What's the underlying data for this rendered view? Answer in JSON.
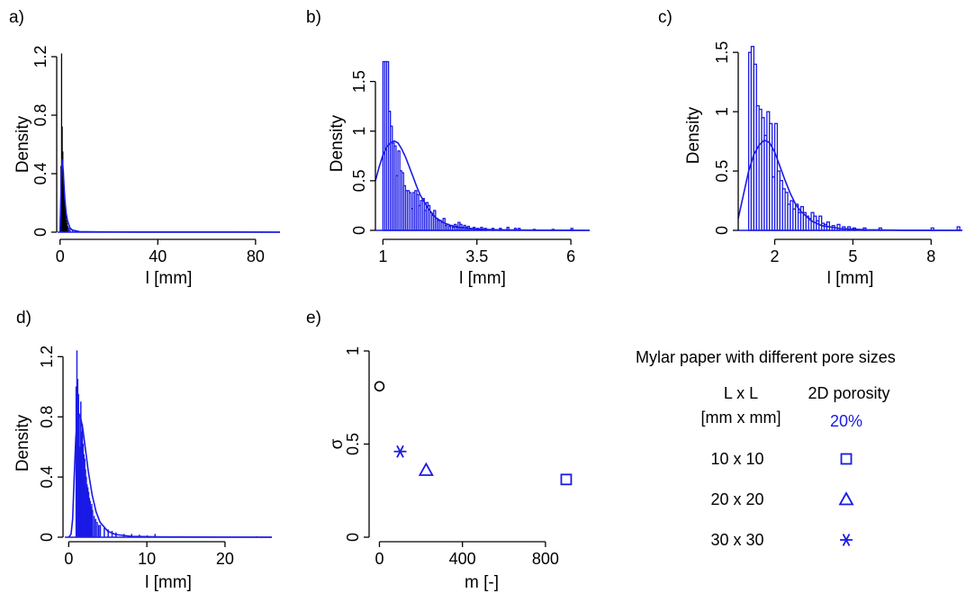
{
  "colors": {
    "series": "#1a1ae6",
    "reference": "#000000",
    "axis": "#000000"
  },
  "chart_data": [
    {
      "id": "a",
      "panel_label": "a)",
      "type": "histogram",
      "xlabel": "l [mm]",
      "ylabel": "Density",
      "xlim": [
        -1,
        90
      ],
      "ylim": [
        0,
        1.2
      ],
      "xticks": [
        {
          "v": 0,
          "label": "0"
        },
        {
          "v": 40,
          "label": "40"
        },
        {
          "v": 80,
          "label": "80"
        }
      ],
      "yticks": [
        {
          "v": 0,
          "label": "0"
        },
        {
          "v": 0.4,
          "label": "0.4"
        },
        {
          "v": 0.8,
          "label": "0.8"
        },
        {
          "v": 1.2,
          "label": "1.2"
        }
      ],
      "bin_width": 0.25,
      "bars": [
        {
          "x": 0.0,
          "h": 0.1,
          "color": "black"
        },
        {
          "x": 0.25,
          "h": 0.45,
          "color": "black"
        },
        {
          "x": 0.5,
          "h": 1.22,
          "color": "black"
        },
        {
          "x": 0.75,
          "h": 0.72,
          "color": "black"
        },
        {
          "x": 1.0,
          "h": 0.55,
          "color": "black"
        },
        {
          "x": 1.25,
          "h": 0.42,
          "color": "black"
        },
        {
          "x": 1.5,
          "h": 0.3,
          "color": "black"
        },
        {
          "x": 1.75,
          "h": 0.22,
          "color": "black"
        },
        {
          "x": 2.0,
          "h": 0.16,
          "color": "black"
        },
        {
          "x": 2.25,
          "h": 0.11,
          "color": "black"
        },
        {
          "x": 2.5,
          "h": 0.08,
          "color": "black"
        },
        {
          "x": 2.75,
          "h": 0.06,
          "color": "black"
        },
        {
          "x": 3.0,
          "h": 0.04,
          "color": "black"
        },
        {
          "x": 3.5,
          "h": 0.03,
          "color": "blue"
        },
        {
          "x": 4.0,
          "h": 0.02,
          "color": "blue"
        },
        {
          "x": 5.0,
          "h": 0.015,
          "color": "blue"
        },
        {
          "x": 6.0,
          "h": 0.01,
          "color": "blue"
        }
      ],
      "curve": [
        [
          0,
          0
        ],
        [
          0.3,
          0.2
        ],
        [
          0.6,
          0.42
        ],
        [
          0.9,
          0.5
        ],
        [
          1.2,
          0.44
        ],
        [
          1.6,
          0.32
        ],
        [
          2.0,
          0.22
        ],
        [
          2.5,
          0.13
        ],
        [
          3.0,
          0.08
        ],
        [
          4.0,
          0.03
        ],
        [
          5.0,
          0.015
        ],
        [
          8,
          0.004
        ],
        [
          15,
          0.002
        ],
        [
          30,
          0.001
        ],
        [
          60,
          0.001
        ],
        [
          90,
          0.0
        ]
      ]
    },
    {
      "id": "b",
      "panel_label": "b)",
      "type": "histogram",
      "xlabel": "l [mm]",
      "ylabel": "Density",
      "xlim": [
        0.8,
        6.5
      ],
      "ylim": [
        0,
        1.75
      ],
      "xticks": [
        {
          "v": 1,
          "label": "1"
        },
        {
          "v": 3.5,
          "label": "3.5"
        },
        {
          "v": 6,
          "label": "6"
        }
      ],
      "yticks": [
        {
          "v": 0,
          "label": "0"
        },
        {
          "v": 0.5,
          "label": "0.5"
        },
        {
          "v": 1,
          "label": "1"
        },
        {
          "v": 1.5,
          "label": "1.5"
        }
      ],
      "bin_width": 0.05,
      "bars": [
        {
          "x": 1.0,
          "h": 1.7
        },
        {
          "x": 1.05,
          "h": 1.7
        },
        {
          "x": 1.1,
          "h": 1.7
        },
        {
          "x": 1.15,
          "h": 1.2
        },
        {
          "x": 1.2,
          "h": 1.05
        },
        {
          "x": 1.25,
          "h": 0.88
        },
        {
          "x": 1.3,
          "h": 0.85
        },
        {
          "x": 1.35,
          "h": 0.55
        },
        {
          "x": 1.4,
          "h": 0.8
        },
        {
          "x": 1.45,
          "h": 0.6
        },
        {
          "x": 1.5,
          "h": 0.58
        },
        {
          "x": 1.55,
          "h": 0.45
        },
        {
          "x": 1.6,
          "h": 0.4
        },
        {
          "x": 1.65,
          "h": 0.4
        },
        {
          "x": 1.7,
          "h": 0.38
        },
        {
          "x": 1.75,
          "h": 0.22
        },
        {
          "x": 1.8,
          "h": 0.38
        },
        {
          "x": 1.85,
          "h": 0.4
        },
        {
          "x": 1.9,
          "h": 0.36
        },
        {
          "x": 1.95,
          "h": 0.25
        },
        {
          "x": 2.0,
          "h": 0.3
        },
        {
          "x": 2.05,
          "h": 0.32
        },
        {
          "x": 2.1,
          "h": 0.2
        },
        {
          "x": 2.15,
          "h": 0.28
        },
        {
          "x": 2.2,
          "h": 0.25
        },
        {
          "x": 2.25,
          "h": 0.18
        },
        {
          "x": 2.3,
          "h": 0.15
        },
        {
          "x": 2.35,
          "h": 0.2
        },
        {
          "x": 2.4,
          "h": 0.12
        },
        {
          "x": 2.45,
          "h": 0.1
        },
        {
          "x": 2.5,
          "h": 0.1
        },
        {
          "x": 2.55,
          "h": 0.08
        },
        {
          "x": 2.6,
          "h": 0.12
        },
        {
          "x": 2.65,
          "h": 0.05
        },
        {
          "x": 2.7,
          "h": 0.06
        },
        {
          "x": 2.75,
          "h": 0.04
        },
        {
          "x": 2.8,
          "h": 0.05
        },
        {
          "x": 2.85,
          "h": 0.03
        },
        {
          "x": 2.9,
          "h": 0.06
        },
        {
          "x": 2.95,
          "h": 0.04
        },
        {
          "x": 3.0,
          "h": 0.08
        },
        {
          "x": 3.05,
          "h": 0.06
        },
        {
          "x": 3.1,
          "h": 0.03
        },
        {
          "x": 3.15,
          "h": 0.05
        },
        {
          "x": 3.2,
          "h": 0.03
        },
        {
          "x": 3.25,
          "h": 0.04
        },
        {
          "x": 3.3,
          "h": 0.02
        },
        {
          "x": 3.4,
          "h": 0.03
        },
        {
          "x": 3.5,
          "h": 0.02
        },
        {
          "x": 3.6,
          "h": 0.03
        },
        {
          "x": 3.7,
          "h": 0.02
        },
        {
          "x": 3.9,
          "h": 0.02
        },
        {
          "x": 4.1,
          "h": 0.02
        },
        {
          "x": 4.3,
          "h": 0.03
        },
        {
          "x": 4.5,
          "h": 0.02
        },
        {
          "x": 4.6,
          "h": 0.02
        },
        {
          "x": 5.0,
          "h": 0.01
        },
        {
          "x": 5.5,
          "h": 0.01
        },
        {
          "x": 6.0,
          "h": 0.02
        }
      ],
      "curve": [
        [
          0.8,
          0.5
        ],
        [
          0.9,
          0.64
        ],
        [
          1.0,
          0.76
        ],
        [
          1.1,
          0.84
        ],
        [
          1.2,
          0.88
        ],
        [
          1.3,
          0.9
        ],
        [
          1.4,
          0.88
        ],
        [
          1.5,
          0.82
        ],
        [
          1.6,
          0.74
        ],
        [
          1.7,
          0.64
        ],
        [
          1.8,
          0.54
        ],
        [
          1.9,
          0.44
        ],
        [
          2.0,
          0.35
        ],
        [
          2.2,
          0.22
        ],
        [
          2.4,
          0.13
        ],
        [
          2.6,
          0.08
        ],
        [
          2.8,
          0.05
        ],
        [
          3.0,
          0.03
        ],
        [
          3.5,
          0.012
        ],
        [
          4.0,
          0.006
        ],
        [
          5.0,
          0.002
        ],
        [
          6.5,
          0.0
        ]
      ]
    },
    {
      "id": "c",
      "panel_label": "c)",
      "type": "histogram",
      "xlabel": "l [mm]",
      "ylabel": "Density",
      "xlim": [
        0.6,
        9.2
      ],
      "ylim": [
        0,
        1.6
      ],
      "xticks": [
        {
          "v": 2,
          "label": "2"
        },
        {
          "v": 5,
          "label": "5"
        },
        {
          "v": 8,
          "label": "8"
        }
      ],
      "yticks": [
        {
          "v": 0,
          "label": "0"
        },
        {
          "v": 0.5,
          "label": "0.5"
        },
        {
          "v": 1,
          "label": "1"
        },
        {
          "v": 1.5,
          "label": "1.5"
        }
      ],
      "bin_width": 0.1,
      "bars": [
        {
          "x": 1.0,
          "h": 1.5
        },
        {
          "x": 1.1,
          "h": 1.55
        },
        {
          "x": 1.2,
          "h": 1.4
        },
        {
          "x": 1.3,
          "h": 1.05
        },
        {
          "x": 1.4,
          "h": 1.02
        },
        {
          "x": 1.5,
          "h": 0.95
        },
        {
          "x": 1.6,
          "h": 0.8
        },
        {
          "x": 1.7,
          "h": 1.0
        },
        {
          "x": 1.8,
          "h": 0.9
        },
        {
          "x": 1.9,
          "h": 0.45
        },
        {
          "x": 2.0,
          "h": 0.9
        },
        {
          "x": 2.1,
          "h": 0.5
        },
        {
          "x": 2.2,
          "h": 0.42
        },
        {
          "x": 2.3,
          "h": 0.35
        },
        {
          "x": 2.4,
          "h": 0.32
        },
        {
          "x": 2.5,
          "h": 0.22
        },
        {
          "x": 2.6,
          "h": 0.25
        },
        {
          "x": 2.7,
          "h": 0.18
        },
        {
          "x": 2.8,
          "h": 0.22
        },
        {
          "x": 2.9,
          "h": 0.15
        },
        {
          "x": 3.0,
          "h": 0.2
        },
        {
          "x": 3.1,
          "h": 0.15
        },
        {
          "x": 3.2,
          "h": 0.12
        },
        {
          "x": 3.3,
          "h": 0.1
        },
        {
          "x": 3.4,
          "h": 0.15
        },
        {
          "x": 3.5,
          "h": 0.12
        },
        {
          "x": 3.6,
          "h": 0.08
        },
        {
          "x": 3.7,
          "h": 0.12
        },
        {
          "x": 3.8,
          "h": 0.06
        },
        {
          "x": 3.9,
          "h": 0.05
        },
        {
          "x": 4.0,
          "h": 0.07
        },
        {
          "x": 4.2,
          "h": 0.04
        },
        {
          "x": 4.4,
          "h": 0.05
        },
        {
          "x": 4.6,
          "h": 0.03
        },
        {
          "x": 4.8,
          "h": 0.03
        },
        {
          "x": 5.0,
          "h": 0.02
        },
        {
          "x": 5.4,
          "h": 0.02
        },
        {
          "x": 6.0,
          "h": 0.02
        },
        {
          "x": 8.0,
          "h": 0.02
        },
        {
          "x": 9.0,
          "h": 0.03
        }
      ],
      "curve": [
        [
          0.6,
          0.1
        ],
        [
          0.8,
          0.3
        ],
        [
          1.0,
          0.5
        ],
        [
          1.2,
          0.64
        ],
        [
          1.4,
          0.72
        ],
        [
          1.6,
          0.76
        ],
        [
          1.8,
          0.74
        ],
        [
          2.0,
          0.66
        ],
        [
          2.2,
          0.54
        ],
        [
          2.4,
          0.42
        ],
        [
          2.6,
          0.31
        ],
        [
          2.8,
          0.22
        ],
        [
          3.0,
          0.16
        ],
        [
          3.4,
          0.08
        ],
        [
          3.8,
          0.04
        ],
        [
          4.5,
          0.015
        ],
        [
          5.5,
          0.005
        ],
        [
          7.0,
          0.001
        ],
        [
          9.2,
          0.0
        ]
      ]
    },
    {
      "id": "d",
      "panel_label": "d)",
      "type": "histogram",
      "xlabel": "l [mm]",
      "ylabel": "Density",
      "xlim": [
        -0.5,
        26
      ],
      "ylim": [
        0,
        1.25
      ],
      "xticks": [
        {
          "v": 0,
          "label": "0"
        },
        {
          "v": 10,
          "label": "10"
        },
        {
          "v": 20,
          "label": "20"
        }
      ],
      "yticks": [
        {
          "v": 0,
          "label": "0"
        },
        {
          "v": 0.4,
          "label": "0.4"
        },
        {
          "v": 0.8,
          "label": "0.8"
        },
        {
          "v": 1.2,
          "label": "1.2"
        }
      ],
      "bin_width": 0.1,
      "bars": [
        {
          "x": 0.9,
          "h": 1.0
        },
        {
          "x": 1.0,
          "h": 1.24
        },
        {
          "x": 1.1,
          "h": 1.05
        },
        {
          "x": 1.2,
          "h": 0.95
        },
        {
          "x": 1.3,
          "h": 0.8
        },
        {
          "x": 1.4,
          "h": 0.6
        },
        {
          "x": 1.5,
          "h": 0.9
        },
        {
          "x": 1.6,
          "h": 0.7
        },
        {
          "x": 1.7,
          "h": 0.75
        },
        {
          "x": 1.8,
          "h": 0.62
        },
        {
          "x": 1.9,
          "h": 0.55
        },
        {
          "x": 2.0,
          "h": 0.52
        },
        {
          "x": 2.1,
          "h": 0.45
        },
        {
          "x": 2.2,
          "h": 0.4
        },
        {
          "x": 2.3,
          "h": 0.35
        },
        {
          "x": 2.4,
          "h": 0.33
        },
        {
          "x": 2.5,
          "h": 0.3
        },
        {
          "x": 2.6,
          "h": 0.26
        },
        {
          "x": 2.7,
          "h": 0.24
        },
        {
          "x": 2.8,
          "h": 0.2
        },
        {
          "x": 2.9,
          "h": 0.22
        },
        {
          "x": 3.0,
          "h": 0.18
        },
        {
          "x": 3.2,
          "h": 0.14
        },
        {
          "x": 3.4,
          "h": 0.12
        },
        {
          "x": 3.6,
          "h": 0.1
        },
        {
          "x": 3.8,
          "h": 0.08
        },
        {
          "x": 4.0,
          "h": 0.08
        },
        {
          "x": 4.5,
          "h": 0.06
        },
        {
          "x": 5.0,
          "h": 0.05
        },
        {
          "x": 5.5,
          "h": 0.04
        },
        {
          "x": 6.0,
          "h": 0.03
        },
        {
          "x": 7.0,
          "h": 0.02
        },
        {
          "x": 8.0,
          "h": 0.02
        },
        {
          "x": 9.0,
          "h": 0.015
        },
        {
          "x": 10.0,
          "h": 0.01
        },
        {
          "x": 11.0,
          "h": 0.02
        },
        {
          "x": 12.0,
          "h": 0.005
        },
        {
          "x": 14.0,
          "h": 0.005
        },
        {
          "x": 16.0,
          "h": 0.005
        },
        {
          "x": 24.0,
          "h": 0.005
        }
      ],
      "curve": [
        [
          0,
          0
        ],
        [
          0.3,
          0.02
        ],
        [
          0.5,
          0.12
        ],
        [
          0.7,
          0.4
        ],
        [
          0.9,
          0.66
        ],
        [
          1.1,
          0.78
        ],
        [
          1.3,
          0.82
        ],
        [
          1.5,
          0.8
        ],
        [
          1.8,
          0.72
        ],
        [
          2.1,
          0.6
        ],
        [
          2.5,
          0.44
        ],
        [
          3.0,
          0.28
        ],
        [
          3.5,
          0.17
        ],
        [
          4.0,
          0.1
        ],
        [
          5.0,
          0.04
        ],
        [
          6.0,
          0.018
        ],
        [
          8.0,
          0.006
        ],
        [
          12,
          0.002
        ],
        [
          26,
          0.0
        ]
      ]
    },
    {
      "id": "e",
      "panel_label": "e)",
      "type": "scatter",
      "xlabel": "m [-]",
      "ylabel": "σ",
      "xlim": [
        -15,
        1000
      ],
      "ylim": [
        0,
        1.0
      ],
      "xticks": [
        {
          "v": 0,
          "label": "0"
        },
        {
          "v": 400,
          "label": "400"
        },
        {
          "v": 800,
          "label": "800"
        }
      ],
      "yticks": [
        {
          "v": 0,
          "label": "0"
        },
        {
          "v": 0.5,
          "label": "0.5"
        },
        {
          "v": 1,
          "label": "1"
        }
      ],
      "points": [
        {
          "x": 0,
          "y": 0.81,
          "marker": "circle",
          "color": "black"
        },
        {
          "x": 100,
          "y": 0.46,
          "marker": "asterisk",
          "color": "blue"
        },
        {
          "x": 225,
          "y": 0.36,
          "marker": "triangle",
          "color": "blue"
        },
        {
          "x": 900,
          "y": 0.31,
          "marker": "square",
          "color": "blue"
        }
      ]
    }
  ],
  "legend": {
    "title": "Mylar paper with different pore sizes",
    "col1_header_line1": "L x L",
    "col1_header_line2": "[mm x mm]",
    "col2_header": "2D porosity",
    "col2_subheader": "20%",
    "rows": [
      {
        "size": "10 x 10",
        "marker": "square"
      },
      {
        "size": "20 x 20",
        "marker": "triangle"
      },
      {
        "size": "30 x 30",
        "marker": "asterisk"
      }
    ]
  }
}
